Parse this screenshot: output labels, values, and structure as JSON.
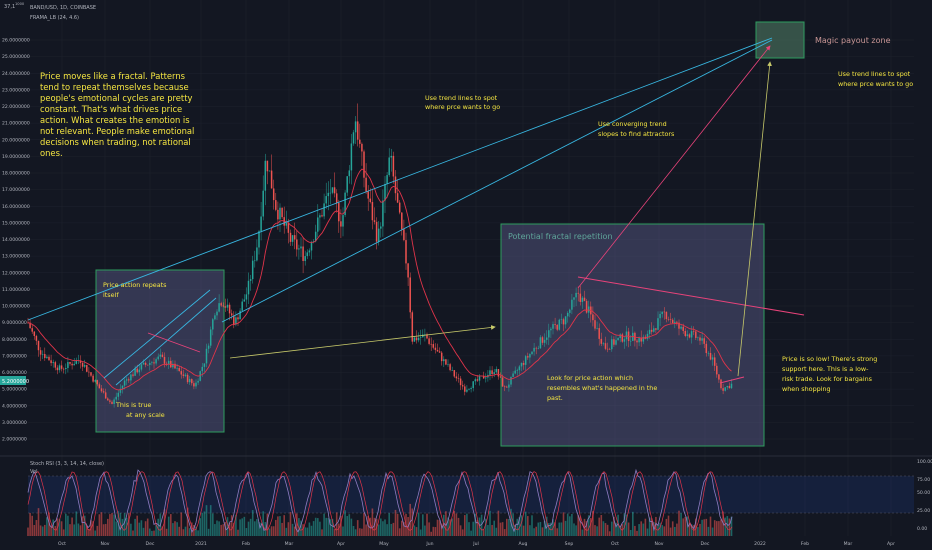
{
  "header": {
    "price_top": "37,1",
    "price_top_sup": "1000",
    "symbol": "BAND/USD, 1D, COINBASE",
    "indicator": "FRAMA_LB (24, 4.6)"
  },
  "oscillator": {
    "label": "Stoch RSI (3, 3, 14, 14, close)",
    "sublabel": "Vol",
    "right_ticks": [
      "100.00",
      "75.00",
      "50.00",
      "25.00",
      "0.00"
    ]
  },
  "y_axis_ticks": [
    "26.0000000",
    "25.0000000",
    "24.0000000",
    "23.0000000",
    "22.0000000",
    "21.0000000",
    "20.0000000",
    "19.0000000",
    "18.0000000",
    "17.0000000",
    "16.0000000",
    "15.0000000",
    "14.0000000",
    "13.0000000",
    "12.0000000",
    "11.0000000",
    "10.0000000",
    "9.0000000",
    "8.0000000",
    "7.0000000",
    "6.0000000",
    "5.0000000",
    "4.0000000",
    "3.0000000",
    "2.0000000"
  ],
  "x_axis_ticks": [
    "Oct",
    "Nov",
    "Dec",
    "2021",
    "Feb",
    "Mar",
    "Apr",
    "May",
    "Jun",
    "Jul",
    "Aug",
    "Sep",
    "Oct",
    "Nov",
    "Dec",
    "2022",
    "Feb",
    "Mar",
    "Apr"
  ],
  "current_price_badge": "5.2000000",
  "annotations": {
    "intro": [
      "Price moves like a fractal. Patterns",
      "tend to repeat themselves because",
      "people's emotional cycles are pretty",
      "constant. That's what drives price",
      "action. What creates the emotion is",
      "not relevant. People make emotional",
      "decisions when trading, not rational",
      "ones."
    ],
    "trend_mid": [
      "Use trend lines to spot",
      "where prce wants to go"
    ],
    "trend_right": [
      "Use trend lines to spot",
      "where prce wants to go"
    ],
    "converging": [
      "Use converging trend",
      "slopes to find attractors"
    ],
    "magic_zone": "Magic payout zone",
    "repeat": [
      "Price action repeats",
      "itself"
    ],
    "scale": [
      "This is true",
      "at any scale"
    ],
    "fractal_box": "Potential fractal repetition",
    "look_for": [
      "Look for price action which",
      "resembles what's happened in the",
      "past."
    ],
    "low_price": [
      "Price is so low! There's strong",
      "support here. This is a low-",
      "risk trade. Look for bargains",
      "when shopping"
    ]
  },
  "colors": {
    "background": "#131722",
    "candle_up": "#26a69a",
    "candle_down": "#ef5350",
    "frama": "#e0344a",
    "trendline": "#38b6e0",
    "note": "#f5e642",
    "box_border": "#2e9c5f",
    "box_fill": "#5e5f8f",
    "pink_line": "#e8437a",
    "yellow_arrow": "#c7c96a",
    "stoch_k": "#8e7cc3",
    "stoch_d": "#e0344a"
  }
}
